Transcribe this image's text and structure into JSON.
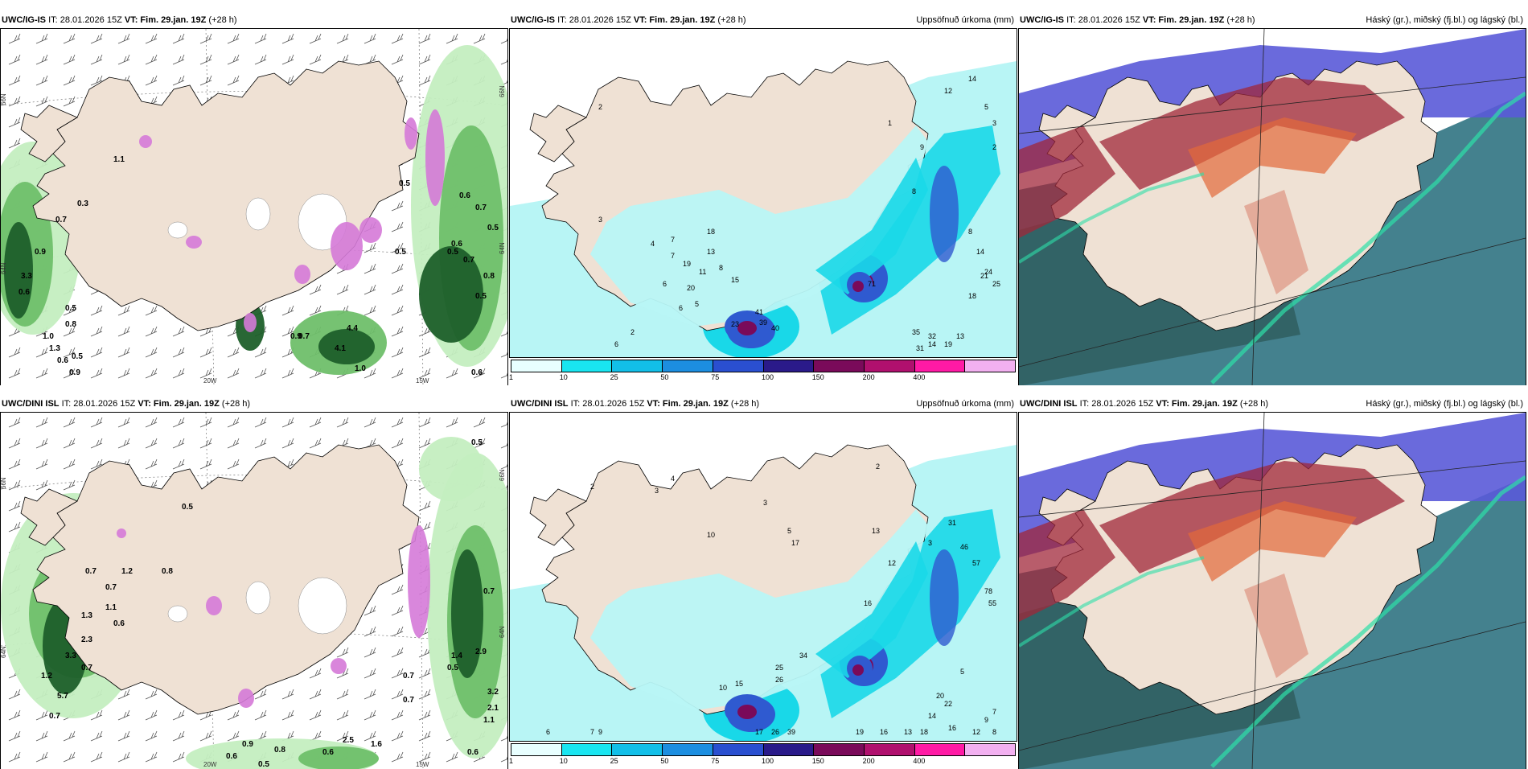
{
  "colors": {
    "land": "#efe1d4",
    "precip_green_light": "#c4eec0",
    "precip_green_mid": "#6fbf6a",
    "precip_green_dark": "#1e5f2a",
    "snow_magenta": "#d57ad8",
    "accum_light": "#b8f5f5",
    "accum_cyan": "#19d8e8",
    "accum_blue": "#2f5ad0",
    "accum_purple": "#7a0a5a",
    "cloud_high_red": "#a0273a",
    "cloud_mid_blue": "#5a5ad8",
    "cloud_low_teal": "#3a7a88"
  },
  "panels": [
    {
      "model": "UWC/IG-IS",
      "it_text": "IT: 28.01.2026 15Z",
      "vt_label": "VT: Fim. 29.jan. 19Z",
      "lead": "(+28 h)",
      "right_title": "",
      "kind": "precip",
      "grid_labels": {
        "bottom": [
          "20W",
          "15W"
        ],
        "left": [
          "66N",
          "64N"
        ],
        "right": [
          "66N",
          "64N"
        ]
      },
      "values": [
        "1.1",
        "0.7",
        "0.3",
        "0.9",
        "3.3",
        "0.6",
        "0.5",
        "0.8",
        "1.0",
        "1.3",
        "0.6",
        "0.5",
        "0.9",
        "0.7",
        "4.4",
        "4.1",
        "1.0",
        "0.9",
        "0.5",
        "0.5",
        "0.6",
        "0.7",
        "0.5",
        "0.6",
        "0.8",
        "0.5",
        "0.7",
        "0.5",
        "0.6"
      ]
    },
    {
      "model": "UWC/IG-IS",
      "it_text": "IT: 28.01.2026 15Z",
      "vt_label": "VT: Fim. 29.jan. 19Z",
      "lead": "(+28 h)",
      "right_title": "Uppsöfnuð úrkoma (mm)",
      "kind": "accum",
      "legend_ticks": [
        "1",
        "10",
        "25",
        "50",
        "75",
        "100",
        "150",
        "200",
        "400"
      ],
      "legend_colors": [
        "#e8ffff",
        "#19e5f0",
        "#12bfe8",
        "#1c8ee0",
        "#2a4fd0",
        "#2a1a8a",
        "#7a0a5a",
        "#b0106e",
        "#ff1aa5",
        "#f2b0f0"
      ],
      "values": [
        "2",
        "3",
        "4",
        "7",
        "13",
        "19",
        "20",
        "11",
        "15",
        "18",
        "8",
        "7",
        "6",
        "6",
        "5",
        "2",
        "6",
        "41",
        "39",
        "40",
        "23",
        "71",
        "35",
        "32",
        "31",
        "14",
        "19",
        "13",
        "18",
        "24",
        "25",
        "21",
        "14",
        "8",
        "8",
        "9",
        "12",
        "14",
        "5",
        "3",
        "2",
        "1"
      ]
    },
    {
      "model": "UWC/IG-IS",
      "it_text": "IT: 28.01.2026 15Z",
      "vt_label": "VT: Fim. 29.jan. 19Z",
      "lead": "(+28 h)",
      "right_title": "Háský (gr.), miðský (fj.bl.) og lágský (bl.)",
      "kind": "cloud"
    },
    {
      "model": "UWC/DINI ISL",
      "it_text": "IT: 28.01.2026 15Z",
      "vt_label": "VT: Fim. 29.jan. 19Z",
      "lead": "(+28 h)",
      "right_title": "",
      "kind": "precip",
      "grid_labels": {
        "bottom": [
          "20W",
          "15W"
        ],
        "left": [
          "66N",
          "64N"
        ],
        "right": [
          "66N",
          "64N"
        ]
      },
      "values": [
        "0.5",
        "0.5",
        "0.7",
        "1.2",
        "0.8",
        "1.1",
        "0.7",
        "0.6",
        "1.3",
        "2.3",
        "3.3",
        "1.2",
        "0.7",
        "5.7",
        "0.7",
        "0.9",
        "0.8",
        "0.6",
        "0.5",
        "2.5",
        "1.6",
        "0.6",
        "0.7",
        "2.9",
        "1.4",
        "3.2",
        "2.1",
        "1.1",
        "0.6",
        "0.7",
        "0.7",
        "0.5"
      ]
    },
    {
      "model": "UWC/DINI ISL",
      "it_text": "IT: 28.01.2026 15Z",
      "vt_label": "VT: Fim. 29.jan. 19Z",
      "lead": "(+28 h)",
      "right_title": "Uppsöfnuð úrkoma (mm)",
      "kind": "accum",
      "legend_ticks": [
        "1",
        "10",
        "25",
        "50",
        "75",
        "100",
        "150",
        "200",
        "400"
      ],
      "legend_colors": [
        "#e8ffff",
        "#19e5f0",
        "#12bfe8",
        "#1c8ee0",
        "#2a4fd0",
        "#2a1a8a",
        "#7a0a5a",
        "#b0106e",
        "#ff1aa5",
        "#f2b0f0"
      ],
      "values": [
        "2",
        "3",
        "4",
        "10",
        "17",
        "13",
        "12",
        "16",
        "34",
        "26",
        "25",
        "15",
        "39",
        "26",
        "17",
        "19",
        "16",
        "13",
        "18",
        "8",
        "22",
        "20",
        "14",
        "16",
        "12",
        "9",
        "7",
        "5",
        "3",
        "2",
        "6",
        "9",
        "7",
        "10",
        "3",
        "5",
        "31",
        "46",
        "57",
        "78",
        "55"
      ]
    },
    {
      "model": "UWC/DINI ISL",
      "it_text": "IT: 28.01.2026 15Z",
      "vt_label": "VT: Fim. 29.jan. 19Z",
      "lead": "(+28 h)",
      "right_title": "Háský (gr.), miðský (fj.bl.) og lágský (bl.)",
      "kind": "cloud"
    }
  ]
}
